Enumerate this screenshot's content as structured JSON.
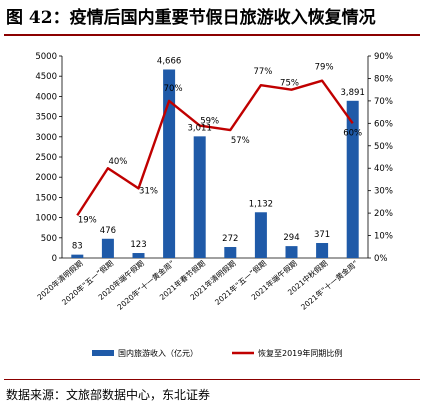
{
  "figure": {
    "title": "图 42：疫情后国内重要节假日旅游收入恢复情况",
    "source": "数据来源：文旅部数据中心，东北证券"
  },
  "colors": {
    "bar": "#1f5aa8",
    "line": "#c00000",
    "rule": "#8b0000"
  },
  "chart_data": {
    "type": "bar",
    "title": "",
    "categories": [
      "2020年清明假期",
      "2020年“五一”假期",
      "2020年端午假期",
      "2020年“十一黄金周”",
      "2021年春节假期",
      "2021年清明假期",
      "2021年“五一”假期",
      "2021年端午假期",
      "2021中秋假期",
      "2021年“十一黄金周”"
    ],
    "series": [
      {
        "name": "国内旅游收入（亿元）",
        "type": "bar",
        "axis": "left",
        "values": [
          83,
          476,
          123,
          4666,
          3011,
          272,
          1132,
          294,
          371,
          3891
        ],
        "labels": [
          "83",
          "476",
          "123",
          "4,666",
          "3,011",
          "272",
          "1,132",
          "294",
          "371",
          "3,891"
        ]
      },
      {
        "name": "恢复至2019年同期比例",
        "type": "line",
        "axis": "right",
        "values": [
          19,
          40,
          31,
          70,
          59,
          57,
          77,
          75,
          79,
          60
        ],
        "labels": [
          "19%",
          "40%",
          "31%",
          "70%",
          "59%",
          "57%",
          "77%",
          "75%",
          "79%",
          "60%"
        ]
      }
    ],
    "yaxis_left": {
      "min": 0,
      "max": 5000,
      "ticks": [
        0,
        500,
        1000,
        1500,
        2000,
        2500,
        3000,
        3500,
        4000,
        4500,
        5000
      ]
    },
    "yaxis_right": {
      "min": 0,
      "max": 90,
      "ticks": [
        "0%",
        "10%",
        "20%",
        "30%",
        "40%",
        "50%",
        "60%",
        "70%",
        "80%",
        "90%"
      ]
    },
    "grid": false,
    "legend": "bottom"
  }
}
